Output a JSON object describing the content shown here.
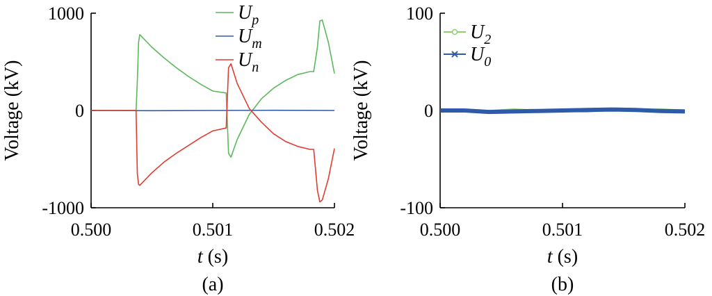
{
  "chart_data": [
    {
      "type": "line",
      "panel_label": "(a)",
      "ylabel": "Voltage (kV)",
      "xlabel_var": "t",
      "xlabel_unit": " (s)",
      "xlim": [
        0.5,
        0.502
      ],
      "ylim": [
        -1000,
        1000
      ],
      "xticks": [
        "0.500",
        "0.501",
        "0.502"
      ],
      "yticks": [
        "1000",
        "0",
        "-1000"
      ],
      "legend_placement": "top-center",
      "series": [
        {
          "name_base": "U",
          "name_sub": "p",
          "color": "#5cb85c",
          "x": [
            0.5,
            0.50037,
            0.50038,
            0.50039,
            0.5004,
            0.5005,
            0.5006,
            0.5007,
            0.5008,
            0.5009,
            0.501,
            0.50111,
            0.50113,
            0.50115,
            0.5012,
            0.5013,
            0.5014,
            0.5015,
            0.5016,
            0.5017,
            0.5018,
            0.50183,
            0.50186,
            0.50188,
            0.5019,
            0.50195,
            0.502
          ],
          "y": [
            0,
            0,
            300,
            700,
            780,
            650,
            540,
            440,
            350,
            270,
            200,
            180,
            -440,
            -480,
            -300,
            -40,
            120,
            230,
            310,
            370,
            400,
            400,
            650,
            920,
            930,
            700,
            380
          ]
        },
        {
          "name_base": "U",
          "name_sub": "m",
          "color": "#2e5aa8",
          "x": [
            0.5,
            0.5005,
            0.501,
            0.5015,
            0.502
          ],
          "y": [
            0,
            -2,
            0,
            2,
            0
          ]
        },
        {
          "name_base": "U",
          "name_sub": "n",
          "color": "#e03c31",
          "x": [
            0.5,
            0.50037,
            0.50038,
            0.50039,
            0.5004,
            0.5005,
            0.5006,
            0.5007,
            0.5008,
            0.5009,
            0.501,
            0.50111,
            0.50113,
            0.50115,
            0.5012,
            0.5013,
            0.5014,
            0.5015,
            0.5016,
            0.5017,
            0.5018,
            0.50183,
            0.50186,
            0.50188,
            0.5019,
            0.50195,
            0.502
          ],
          "y": [
            0,
            0,
            -650,
            -760,
            -770,
            -640,
            -530,
            -440,
            -360,
            -280,
            -210,
            -180,
            440,
            480,
            280,
            20,
            -120,
            -240,
            -320,
            -370,
            -400,
            -400,
            -820,
            -940,
            -920,
            -700,
            -390
          ]
        }
      ]
    },
    {
      "type": "line",
      "panel_label": "(b)",
      "ylabel": "Voltage (kV)",
      "xlabel_var": "t",
      "xlabel_unit": " (s)",
      "xlim": [
        0.5,
        0.502
      ],
      "ylim": [
        -100,
        100
      ],
      "xticks": [
        "0.500",
        "0.501",
        "0.502"
      ],
      "yticks": [
        "100",
        "0",
        "-100"
      ],
      "legend_placement": "top-left",
      "series": [
        {
          "name_base": "U",
          "name_sub": "2",
          "color": "#8ed16a",
          "marker": "circle",
          "x": [
            0.5,
            0.5002,
            0.5004,
            0.5006,
            0.5008,
            0.501,
            0.5012,
            0.5014,
            0.5016,
            0.5018,
            0.502
          ],
          "y": [
            0,
            0.5,
            -0.5,
            1,
            0,
            -0.5,
            -1,
            0.5,
            0.5,
            1,
            0
          ]
        },
        {
          "name_base": "U",
          "name_sub": "0",
          "color": "#2e5aa8",
          "marker": "x",
          "x": [
            0.5,
            0.5002,
            0.5004,
            0.5006,
            0.5008,
            0.501,
            0.5012,
            0.5014,
            0.5016,
            0.5018,
            0.502
          ],
          "y": [
            0,
            0,
            -1.5,
            -1,
            -0.5,
            0,
            0.5,
            1,
            0.5,
            -0.5,
            -1
          ]
        }
      ]
    }
  ]
}
